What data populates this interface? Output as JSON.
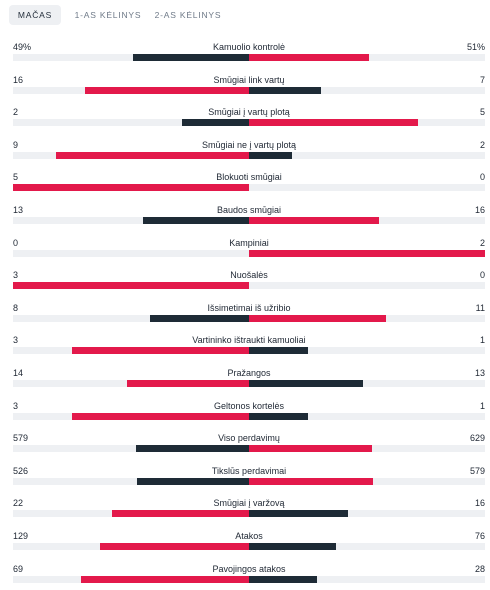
{
  "tabs": [
    {
      "label": "MAČAS",
      "active": true
    },
    {
      "label": "1-AS KĖLINYS",
      "active": false
    },
    {
      "label": "2-AS KĖLINYS",
      "active": false
    }
  ],
  "colors": {
    "home_winner": "#e3194b",
    "away_winner": "#e3194b",
    "loser": "#1e2b36",
    "track": "#eef0f3"
  },
  "stats": [
    {
      "label": "Kamuolio kontrolė",
      "home": "49%",
      "away": "51%",
      "home_value": 49,
      "away_value": 51
    },
    {
      "label": "Smūgiai link vartų",
      "home": "16",
      "away": "7",
      "home_value": 16,
      "away_value": 7
    },
    {
      "label": "Smūgiai į vartų plotą",
      "home": "2",
      "away": "5",
      "home_value": 2,
      "away_value": 5
    },
    {
      "label": "Smūgiai ne į vartų plotą",
      "home": "9",
      "away": "2",
      "home_value": 9,
      "away_value": 2
    },
    {
      "label": "Blokuoti smūgiai",
      "home": "5",
      "away": "0",
      "home_value": 5,
      "away_value": 0
    },
    {
      "label": "Baudos smūgiai",
      "home": "13",
      "away": "16",
      "home_value": 13,
      "away_value": 16
    },
    {
      "label": "Kampiniai",
      "home": "0",
      "away": "2",
      "home_value": 0,
      "away_value": 2
    },
    {
      "label": "Nuošalės",
      "home": "3",
      "away": "0",
      "home_value": 3,
      "away_value": 0
    },
    {
      "label": "Išsimetimai iš užribio",
      "home": "8",
      "away": "11",
      "home_value": 8,
      "away_value": 11
    },
    {
      "label": "Vartininko ištraukti kamuoliai",
      "home": "3",
      "away": "1",
      "home_value": 3,
      "away_value": 1
    },
    {
      "label": "Pražangos",
      "home": "14",
      "away": "13",
      "home_value": 14,
      "away_value": 13
    },
    {
      "label": "Geltonos kortelės",
      "home": "3",
      "away": "1",
      "home_value": 3,
      "away_value": 1
    },
    {
      "label": "Viso perdavimų",
      "home": "579",
      "away": "629",
      "home_value": 579,
      "away_value": 629
    },
    {
      "label": "Tikslūs perdavimai",
      "home": "526",
      "away": "579",
      "home_value": 526,
      "away_value": 579
    },
    {
      "label": "Smūgiai į varžovą",
      "home": "22",
      "away": "16",
      "home_value": 22,
      "away_value": 16
    },
    {
      "label": "Atakos",
      "home": "129",
      "away": "76",
      "home_value": 129,
      "away_value": 76
    },
    {
      "label": "Pavojingos atakos",
      "home": "69",
      "away": "28",
      "home_value": 69,
      "away_value": 28
    }
  ]
}
